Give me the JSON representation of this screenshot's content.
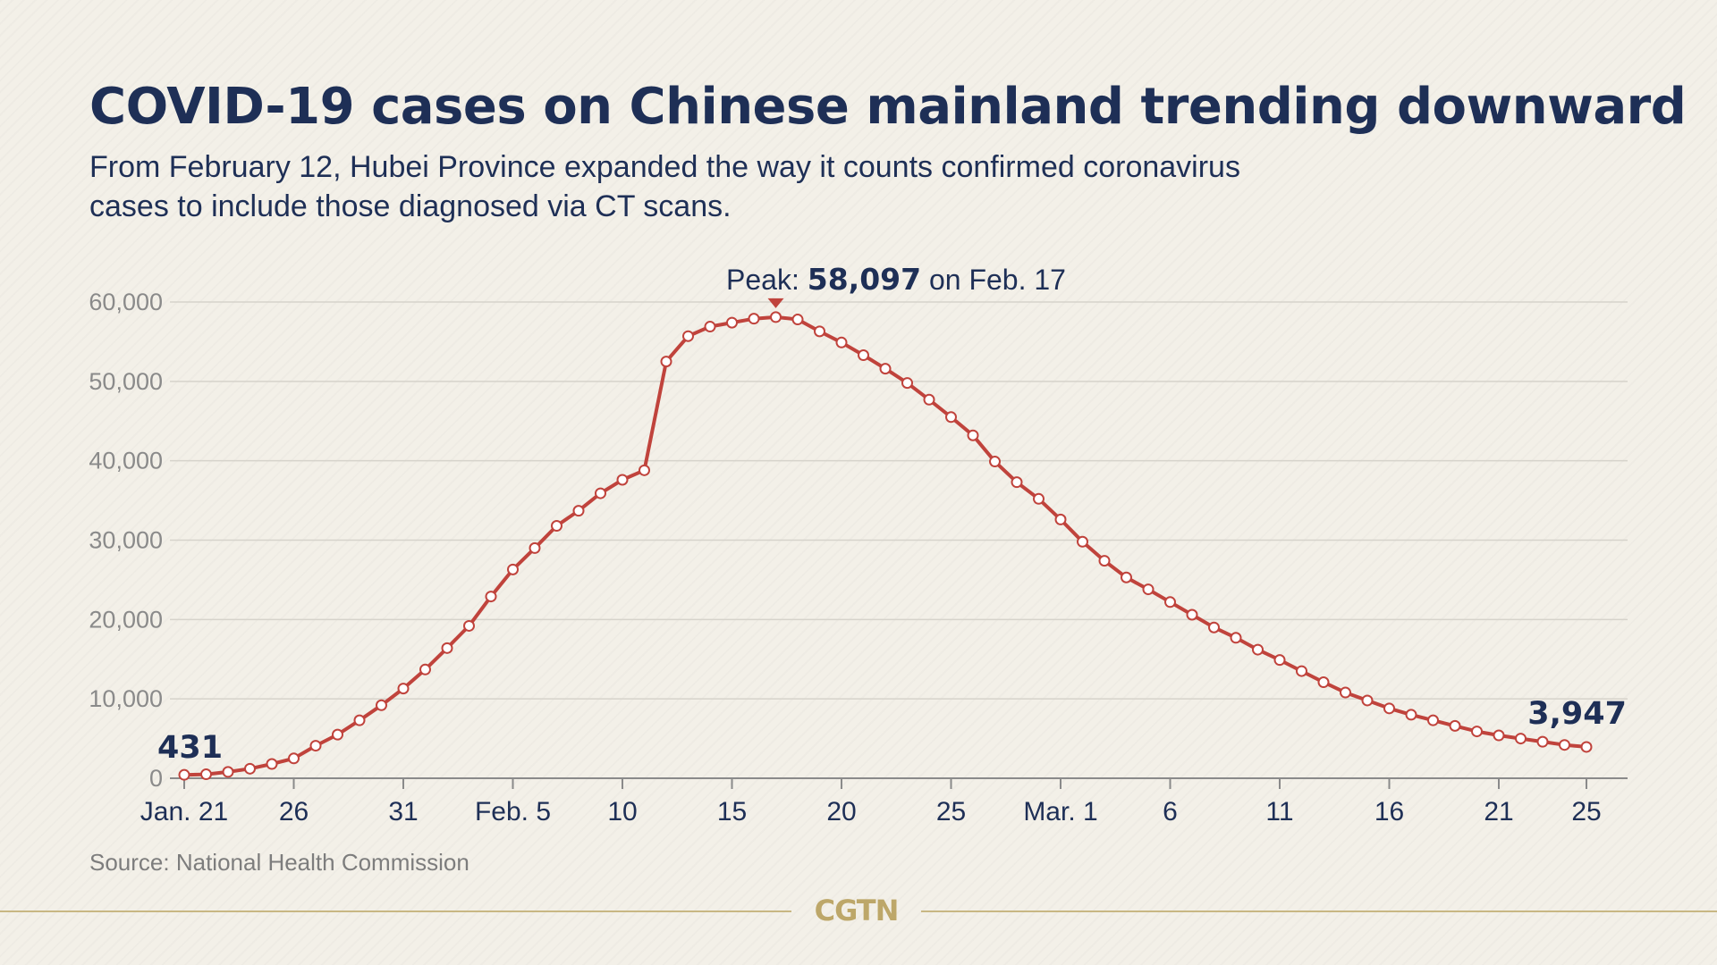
{
  "header": {
    "title": "COVID-19 cases on Chinese mainland trending downward",
    "subtitle": "From February 12, Hubei Province expanded the way it counts confirmed coronavirus cases to include those diagnosed via CT scans."
  },
  "footer": {
    "source": "Source: National Health Commission",
    "logo": "CGTN"
  },
  "annotations": {
    "peak": {
      "prefix": "Peak: ",
      "value": "58,097",
      "suffix": " on Feb. 17",
      "index": 27
    },
    "start_label": "431",
    "end_label": "3,947"
  },
  "colors": {
    "line": "#c0433c",
    "marker_fill": "#ffffff",
    "text": "#1e2f56",
    "gridline": "#d6d3cb",
    "axis": "#8a8a8a",
    "logo": "#bda769"
  },
  "chart_data": {
    "type": "line",
    "title": "COVID-19 cases on Chinese mainland trending downward",
    "x_start": "Jan. 21",
    "x_end": "Mar. 25",
    "x_ticks": [
      {
        "index": 0,
        "label": "Jan. 21"
      },
      {
        "index": 5,
        "label": "26"
      },
      {
        "index": 10,
        "label": "31"
      },
      {
        "index": 15,
        "label": "Feb. 5"
      },
      {
        "index": 20,
        "label": "10"
      },
      {
        "index": 25,
        "label": "15"
      },
      {
        "index": 30,
        "label": "20"
      },
      {
        "index": 35,
        "label": "25"
      },
      {
        "index": 40,
        "label": "Mar. 1"
      },
      {
        "index": 45,
        "label": "6"
      },
      {
        "index": 50,
        "label": "11"
      },
      {
        "index": 55,
        "label": "16"
      },
      {
        "index": 60,
        "label": "21"
      },
      {
        "index": 64,
        "label": "25"
      }
    ],
    "y_ticks": [
      0,
      10000,
      20000,
      30000,
      40000,
      50000,
      60000
    ],
    "y_tick_labels": [
      "0",
      "10,000",
      "20,000",
      "30,000",
      "40,000",
      "50,000",
      "60,000"
    ],
    "ylim": [
      0,
      60000
    ],
    "grid": true,
    "values": [
      431,
      500,
      800,
      1200,
      1800,
      2500,
      4100,
      5500,
      7300,
      9200,
      11300,
      13700,
      16400,
      19200,
      22900,
      26300,
      29000,
      31800,
      33700,
      35900,
      37600,
      38800,
      52500,
      55700,
      56900,
      57400,
      57900,
      58097,
      57800,
      56300,
      54900,
      53300,
      51600,
      49800,
      47700,
      45500,
      43200,
      39900,
      37300,
      35200,
      32600,
      29800,
      27400,
      25300,
      23800,
      22200,
      20600,
      19000,
      17700,
      16200,
      14900,
      13500,
      12100,
      10800,
      9800,
      8800,
      8000,
      7300,
      6600,
      5900,
      5400,
      5000,
      4600,
      4200,
      3947
    ]
  }
}
